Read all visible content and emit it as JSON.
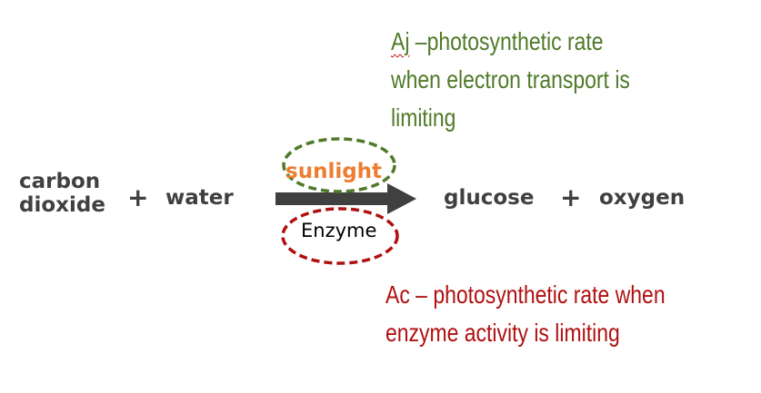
{
  "equation": {
    "reactant_1": [
      "carbon",
      "dioxide"
    ],
    "plus_1": "+",
    "reactant_2": "water",
    "product_1": "glucose",
    "plus_2": "+",
    "product_2": "oxygen"
  },
  "arrow_labels": {
    "above": "sunlight",
    "below": "Enzyme"
  },
  "annotations": {
    "aj": {
      "prefix": "Aj",
      "lines": [
        " –photosynthetic rate",
        "when electron transport is",
        "limiting"
      ]
    },
    "ac": {
      "lines": [
        "Ac – photosynthetic rate when",
        "enzyme activity is limiting"
      ]
    }
  },
  "colors": {
    "equation_text": "#404040",
    "sunlight_text": "#ed7d31",
    "aj_text": "#4f7a28",
    "aj_ellipse": "#4f7a28",
    "ac_text": "#b01010",
    "ac_ellipse": "#b01010",
    "arrow": "#404040"
  }
}
